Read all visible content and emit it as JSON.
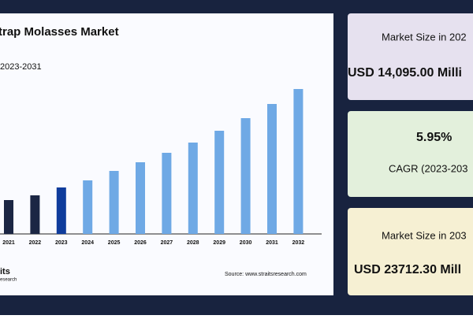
{
  "chart_data": {
    "type": "bar",
    "title": "trap Molasses Market",
    "subtitle": "2023-2031",
    "categories": [
      "2021",
      "2022",
      "2023",
      "2024",
      "2025",
      "2026",
      "2027",
      "2028",
      "2029",
      "2030",
      "2031",
      "2032"
    ],
    "values": [
      43,
      49,
      59,
      68,
      80,
      91,
      103,
      116,
      131,
      147,
      165,
      184
    ],
    "colors": [
      "#1b2644",
      "#1b2644",
      "#0f3c9c",
      "#6fa9e5",
      "#6fa9e5",
      "#6fa9e5",
      "#6fa9e5",
      "#6fa9e5",
      "#6fa9e5",
      "#6fa9e5",
      "#6fa9e5",
      "#6fa9e5"
    ],
    "ylim": [
      0,
      200
    ],
    "source": "Source: www.straitsresearch.com",
    "logo": [
      "its",
      "esearch"
    ]
  },
  "cards": [
    {
      "label": "Market Size in 202",
      "value": "USD 14,095.00 Milli"
    },
    {
      "label": "CAGR (2023-203",
      "value": "5.95%"
    },
    {
      "label": "Market Size in 203",
      "value": "USD 23712.30 Mill"
    }
  ]
}
